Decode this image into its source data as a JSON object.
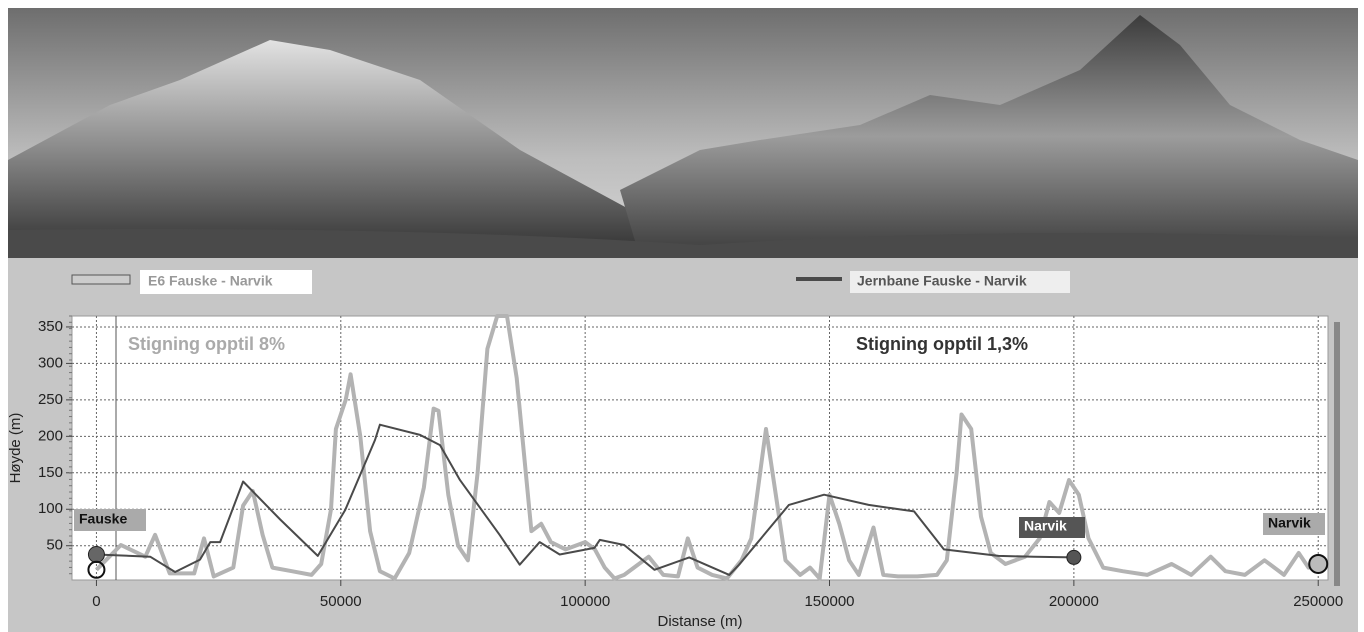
{
  "chart_data": {
    "type": "line",
    "legend": [
      "E6 Fauske - Narvik",
      "Jernbane Fauske - Narvik"
    ],
    "annotations": [
      "Stigning opptil 8%",
      "Stigning opptil 1,3%",
      "Fauske",
      "Narvik",
      "Narvik"
    ],
    "xlabel": "Distanse (m)",
    "ylabel": "Høyde (m)",
    "xlim": [
      -5000,
      252000
    ],
    "ylim": [
      3,
      365
    ],
    "xticks": [
      0,
      50000,
      100000,
      150000,
      200000,
      250000
    ],
    "yticks": [
      50,
      100,
      150,
      200,
      250,
      300,
      350
    ],
    "grid": true,
    "series": [
      {
        "name": "E6 Fauske - Narvik",
        "color": "#b3b3b3",
        "x": [
          0,
          5000,
          10000,
          12000,
          15000,
          20000,
          22000,
          24000,
          28000,
          30000,
          32000,
          34000,
          36000,
          40000,
          44000,
          46000,
          48000,
          49000,
          51000,
          52000,
          54000,
          56000,
          58000,
          61000,
          64000,
          67000,
          69000,
          70000,
          72000,
          74000,
          76000,
          78000,
          80000,
          82000,
          84000,
          86000,
          88000,
          89000,
          91000,
          93000,
          96000,
          100000,
          102000,
          104000,
          106000,
          108000,
          110000,
          113000,
          116000,
          119000,
          121000,
          123000,
          126000,
          129000,
          132000,
          134000,
          137000,
          139000,
          141000,
          144000,
          146000,
          148000,
          150000,
          152000,
          154000,
          156000,
          159000,
          161000,
          164000,
          168000,
          172000,
          174000,
          176000,
          177000,
          179000,
          181000,
          183000,
          186000,
          190000,
          193000,
          195000,
          197000,
          199000,
          201000,
          203000,
          206000,
          210000,
          215000,
          220000,
          224000,
          228000,
          231000,
          235000,
          239000,
          243000,
          246000,
          248000,
          250000
        ],
        "values": [
          17,
          51,
          35,
          65,
          12,
          12,
          60,
          8,
          20,
          105,
          125,
          65,
          20,
          15,
          10,
          25,
          100,
          210,
          250,
          285,
          200,
          70,
          15,
          5,
          40,
          130,
          238,
          235,
          120,
          50,
          30,
          150,
          320,
          365,
          365,
          280,
          140,
          70,
          80,
          55,
          45,
          55,
          45,
          20,
          5,
          10,
          20,
          35,
          10,
          8,
          60,
          20,
          10,
          5,
          30,
          60,
          210,
          120,
          30,
          10,
          20,
          5,
          120,
          80,
          30,
          10,
          75,
          10,
          8,
          8,
          10,
          30,
          150,
          230,
          210,
          90,
          40,
          25,
          35,
          60,
          110,
          95,
          140,
          120,
          60,
          20,
          15,
          10,
          25,
          10,
          35,
          15,
          10,
          30,
          10,
          40,
          20,
          25
        ]
      },
      {
        "name": "Jernbane Fauske - Narvik",
        "color": "#4a4a4a",
        "x": [
          0,
          11000,
          16100,
          21200,
          23300,
          25300,
          30000,
          37600,
          45300,
          50900,
          57000,
          58000,
          66200,
          70300,
          74400,
          82500,
          86600,
          90700,
          94800,
          101900,
          103000,
          108000,
          114200,
          121300,
          129500,
          131500,
          141700,
          148900,
          158000,
          167300,
          173400,
          184600,
          191800,
          200000
        ],
        "values": [
          38,
          35,
          14,
          31,
          55,
          55,
          138,
          86,
          36,
          99,
          195,
          216,
          202,
          188,
          140,
          65,
          24,
          55,
          38,
          47,
          58,
          51,
          17,
          34,
          10,
          24,
          106,
          120,
          106,
          97,
          45,
          36,
          35,
          34
        ]
      }
    ]
  }
}
